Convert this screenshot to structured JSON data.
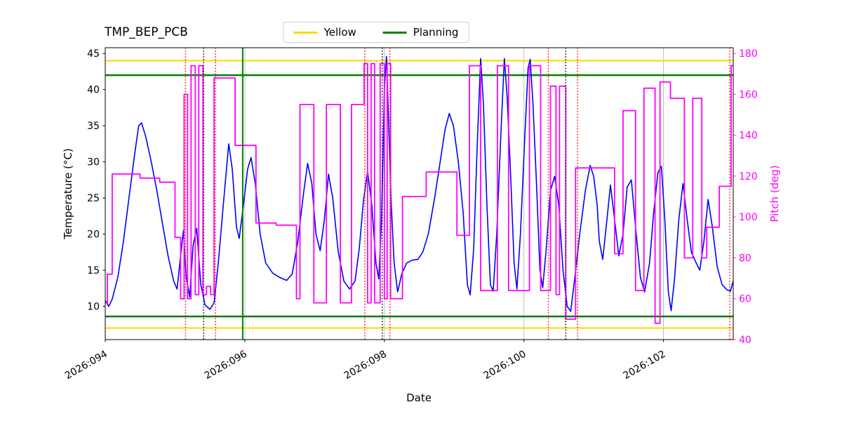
{
  "legend": {
    "entries": [
      {
        "label": "Yellow",
        "color": "#ffd700"
      },
      {
        "label": "Planning",
        "color": "#008000"
      }
    ]
  },
  "chart_data": {
    "type": "line",
    "title": "TMP_BEP_PCB",
    "xlabel": "Date",
    "ylabel_left": "Temperature (°C)",
    "ylabel_right": "Pitch (deg)",
    "xlim": [
      94,
      103
    ],
    "ylim_left": [
      5.4,
      45.8
    ],
    "ylim_right": [
      40,
      182.8
    ],
    "x_ticks": [
      94,
      96,
      98,
      100,
      102
    ],
    "x_tick_labels": [
      "2026:094",
      "2026:096",
      "2026:098",
      "2026:100",
      "2026:102"
    ],
    "y_ticks_left": [
      10,
      15,
      20,
      25,
      30,
      35,
      40,
      45
    ],
    "y_ticks_right": [
      40,
      60,
      80,
      100,
      120,
      140,
      160,
      180
    ],
    "grid": {
      "vertical": true,
      "horizontal": false,
      "color": "#b0b0b0"
    },
    "colors": {
      "temperature": "#0000ff",
      "pitch": "#ff00ff",
      "yellow_limit": "#ffd700",
      "planning_limit": "#008000",
      "red_event": "#ff0000",
      "black_event": "#000000"
    },
    "hlines": [
      {
        "y": 44.0,
        "color": "#ffd700",
        "style": "solid",
        "width": 2,
        "label": "Yellow"
      },
      {
        "y": 7.0,
        "color": "#ffd700",
        "style": "solid",
        "width": 2,
        "label": "Yellow"
      },
      {
        "y": 42.0,
        "color": "#008000",
        "style": "solid",
        "width": 2.5,
        "label": "Planning"
      },
      {
        "y": 8.6,
        "color": "#008000",
        "style": "solid",
        "width": 2.5,
        "label": "Planning"
      }
    ],
    "vlines": [
      {
        "x": 95.15,
        "color": "#ff0000",
        "style": "dotted"
      },
      {
        "x": 95.58,
        "color": "#ff0000",
        "style": "dotted"
      },
      {
        "x": 97.72,
        "color": "#ff0000",
        "style": "dotted"
      },
      {
        "x": 98.08,
        "color": "#ff0000",
        "style": "dotted"
      },
      {
        "x": 100.35,
        "color": "#ff0000",
        "style": "dotted"
      },
      {
        "x": 100.77,
        "color": "#ff0000",
        "style": "dotted"
      },
      {
        "x": 102.95,
        "color": "#ff0000",
        "style": "dotted"
      },
      {
        "x": 95.41,
        "color": "#000000",
        "style": "dotted"
      },
      {
        "x": 97.97,
        "color": "#000000",
        "style": "dotted"
      },
      {
        "x": 100.6,
        "color": "#000000",
        "style": "dotted"
      },
      {
        "x": 95.97,
        "color": "#008000",
        "style": "solid"
      }
    ],
    "series": [
      {
        "id": "temperature",
        "name": "Temperature (°C)",
        "axis": "left",
        "type": "line",
        "color": "#0000ff",
        "width": 1.6,
        "points": [
          [
            94.0,
            10.8
          ],
          [
            94.05,
            10.0
          ],
          [
            94.1,
            11.0
          ],
          [
            94.18,
            14.0
          ],
          [
            94.26,
            19.0
          ],
          [
            94.34,
            25.0
          ],
          [
            94.42,
            31.0
          ],
          [
            94.48,
            35.0
          ],
          [
            94.52,
            35.4
          ],
          [
            94.58,
            33.5
          ],
          [
            94.66,
            30.0
          ],
          [
            94.74,
            26.0
          ],
          [
            94.82,
            21.5
          ],
          [
            94.9,
            17.0
          ],
          [
            94.98,
            13.5
          ],
          [
            95.03,
            12.4
          ],
          [
            95.08,
            17.0
          ],
          [
            95.12,
            20.5
          ],
          [
            95.16,
            14.0
          ],
          [
            95.21,
            11.3
          ],
          [
            95.26,
            18.5
          ],
          [
            95.31,
            20.8
          ],
          [
            95.37,
            13.0
          ],
          [
            95.43,
            10.2
          ],
          [
            95.5,
            9.6
          ],
          [
            95.56,
            10.5
          ],
          [
            95.62,
            16.0
          ],
          [
            95.7,
            25.0
          ],
          [
            95.77,
            32.5
          ],
          [
            95.82,
            29.0
          ],
          [
            95.88,
            21.0
          ],
          [
            95.92,
            19.4
          ],
          [
            95.98,
            24.0
          ],
          [
            96.04,
            29.0
          ],
          [
            96.09,
            30.6
          ],
          [
            96.15,
            27.0
          ],
          [
            96.22,
            20.0
          ],
          [
            96.3,
            16.0
          ],
          [
            96.4,
            14.6
          ],
          [
            96.5,
            14.0
          ],
          [
            96.6,
            13.6
          ],
          [
            96.68,
            14.5
          ],
          [
            96.76,
            19.0
          ],
          [
            96.84,
            25.5
          ],
          [
            96.9,
            29.8
          ],
          [
            96.96,
            27.0
          ],
          [
            97.02,
            20.0
          ],
          [
            97.08,
            17.7
          ],
          [
            97.14,
            22.0
          ],
          [
            97.2,
            28.3
          ],
          [
            97.26,
            25.0
          ],
          [
            97.34,
            17.5
          ],
          [
            97.42,
            13.5
          ],
          [
            97.5,
            12.4
          ],
          [
            97.58,
            13.5
          ],
          [
            97.64,
            18.0
          ],
          [
            97.7,
            24.5
          ],
          [
            97.76,
            28.7
          ],
          [
            97.82,
            24.0
          ],
          [
            97.88,
            16.0
          ],
          [
            97.92,
            13.8
          ],
          [
            97.96,
            22.0
          ],
          [
            98.0,
            40.0
          ],
          [
            98.03,
            44.6
          ],
          [
            98.06,
            36.0
          ],
          [
            98.1,
            24.0
          ],
          [
            98.14,
            16.0
          ],
          [
            98.19,
            12.0
          ],
          [
            98.25,
            14.5
          ],
          [
            98.32,
            16.0
          ],
          [
            98.4,
            16.4
          ],
          [
            98.48,
            16.5
          ],
          [
            98.55,
            17.5
          ],
          [
            98.63,
            20.0
          ],
          [
            98.72,
            25.0
          ],
          [
            98.8,
            30.0
          ],
          [
            98.87,
            34.5
          ],
          [
            98.93,
            36.7
          ],
          [
            98.99,
            35.0
          ],
          [
            99.06,
            30.0
          ],
          [
            99.13,
            23.0
          ],
          [
            99.19,
            13.0
          ],
          [
            99.23,
            11.6
          ],
          [
            99.28,
            18.0
          ],
          [
            99.33,
            32.0
          ],
          [
            99.38,
            44.3
          ],
          [
            99.42,
            38.0
          ],
          [
            99.47,
            24.0
          ],
          [
            99.52,
            13.0
          ],
          [
            99.56,
            12.1
          ],
          [
            99.61,
            20.0
          ],
          [
            99.67,
            34.0
          ],
          [
            99.72,
            44.3
          ],
          [
            99.76,
            39.0
          ],
          [
            99.81,
            28.0
          ],
          [
            99.86,
            16.0
          ],
          [
            99.9,
            12.4
          ],
          [
            99.95,
            20.0
          ],
          [
            100.01,
            33.0
          ],
          [
            100.06,
            43.0
          ],
          [
            100.09,
            44.2
          ],
          [
            100.13,
            38.0
          ],
          [
            100.18,
            27.0
          ],
          [
            100.23,
            15.0
          ],
          [
            100.27,
            12.6
          ],
          [
            100.32,
            18.0
          ],
          [
            100.38,
            26.0
          ],
          [
            100.44,
            28.0
          ],
          [
            100.5,
            24.0
          ],
          [
            100.56,
            15.0
          ],
          [
            100.62,
            10.0
          ],
          [
            100.67,
            9.3
          ],
          [
            100.73,
            14.0
          ],
          [
            100.8,
            20.0
          ],
          [
            100.88,
            26.0
          ],
          [
            100.95,
            29.5
          ],
          [
            101.0,
            28.0
          ],
          [
            101.05,
            24.0
          ],
          [
            101.08,
            19.0
          ],
          [
            101.13,
            16.5
          ],
          [
            101.19,
            22.0
          ],
          [
            101.24,
            26.8
          ],
          [
            101.3,
            22.0
          ],
          [
            101.36,
            17.0
          ],
          [
            101.42,
            20.0
          ],
          [
            101.48,
            26.5
          ],
          [
            101.54,
            27.5
          ],
          [
            101.6,
            21.0
          ],
          [
            101.67,
            14.0
          ],
          [
            101.73,
            12.0
          ],
          [
            101.8,
            16.0
          ],
          [
            101.86,
            23.0
          ],
          [
            101.92,
            28.5
          ],
          [
            101.97,
            29.4
          ],
          [
            102.02,
            22.0
          ],
          [
            102.07,
            12.0
          ],
          [
            102.11,
            9.4
          ],
          [
            102.16,
            14.0
          ],
          [
            102.22,
            22.0
          ],
          [
            102.28,
            27.0
          ],
          [
            102.34,
            22.0
          ],
          [
            102.4,
            17.5
          ],
          [
            102.46,
            16.2
          ],
          [
            102.52,
            15.0
          ],
          [
            102.58,
            19.0
          ],
          [
            102.64,
            24.8
          ],
          [
            102.7,
            21.0
          ],
          [
            102.77,
            15.5
          ],
          [
            102.84,
            13.0
          ],
          [
            102.91,
            12.3
          ],
          [
            102.96,
            12.1
          ],
          [
            103.0,
            13.5
          ]
        ]
      },
      {
        "id": "pitch",
        "name": "Pitch (deg)",
        "axis": "right",
        "type": "step",
        "color": "#ff00ff",
        "width": 1.8,
        "points": [
          [
            94.0,
            58
          ],
          [
            94.03,
            72
          ],
          [
            94.1,
            121
          ],
          [
            94.5,
            119
          ],
          [
            94.78,
            117
          ],
          [
            95.0,
            90
          ],
          [
            95.08,
            60
          ],
          [
            95.13,
            160
          ],
          [
            95.18,
            60
          ],
          [
            95.23,
            174
          ],
          [
            95.29,
            62
          ],
          [
            95.34,
            174
          ],
          [
            95.4,
            62
          ],
          [
            95.45,
            66
          ],
          [
            95.51,
            62
          ],
          [
            95.56,
            168
          ],
          [
            95.86,
            135
          ],
          [
            96.16,
            97
          ],
          [
            96.45,
            96
          ],
          [
            96.74,
            60
          ],
          [
            96.79,
            155
          ],
          [
            96.99,
            58
          ],
          [
            97.17,
            155
          ],
          [
            97.37,
            58
          ],
          [
            97.53,
            155
          ],
          [
            97.71,
            175
          ],
          [
            97.76,
            58
          ],
          [
            97.81,
            175
          ],
          [
            97.86,
            58
          ],
          [
            97.94,
            175
          ],
          [
            98.0,
            60
          ],
          [
            98.04,
            175
          ],
          [
            98.09,
            60
          ],
          [
            98.26,
            110
          ],
          [
            98.6,
            122
          ],
          [
            99.04,
            91
          ],
          [
            99.22,
            174
          ],
          [
            99.38,
            64
          ],
          [
            99.62,
            174
          ],
          [
            99.78,
            64
          ],
          [
            100.08,
            174
          ],
          [
            100.24,
            64
          ],
          [
            100.38,
            164
          ],
          [
            100.46,
            62
          ],
          [
            100.51,
            164
          ],
          [
            100.6,
            50
          ],
          [
            100.74,
            124
          ],
          [
            101.3,
            82
          ],
          [
            101.42,
            152
          ],
          [
            101.6,
            64
          ],
          [
            101.72,
            163
          ],
          [
            101.88,
            48
          ],
          [
            101.95,
            166
          ],
          [
            102.1,
            158
          ],
          [
            102.3,
            80
          ],
          [
            102.42,
            158
          ],
          [
            102.55,
            80
          ],
          [
            102.62,
            95
          ],
          [
            102.8,
            115
          ],
          [
            102.97,
            174
          ]
        ]
      }
    ]
  }
}
